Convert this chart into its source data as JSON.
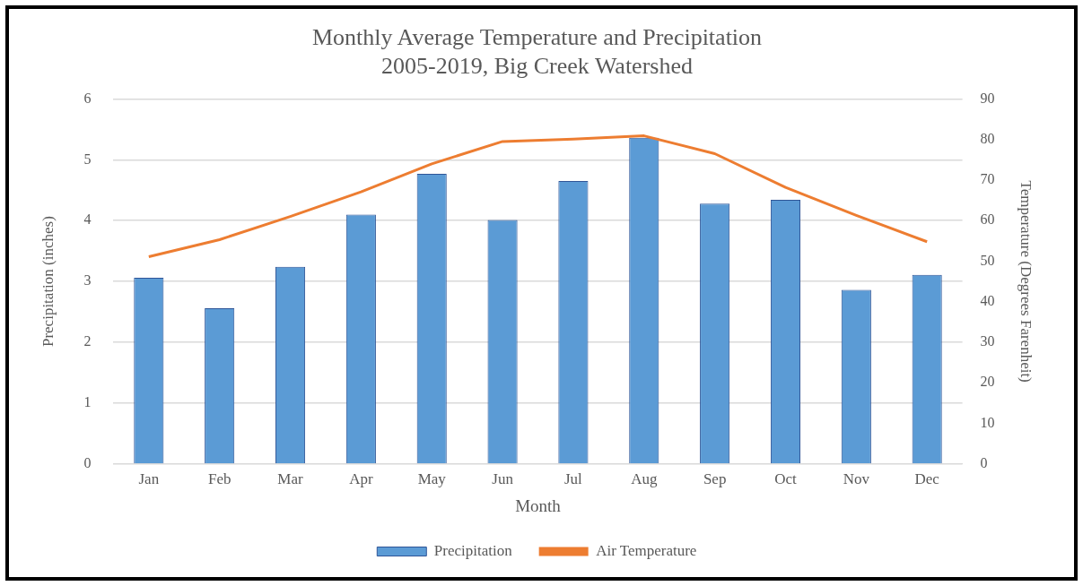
{
  "chart_data": {
    "type": "bar",
    "title": [
      "Monthly Average Temperature and Precipitation",
      "2005-2019, Big Creek Watershed"
    ],
    "xlabel": "Month",
    "ylabel": "Precipitation (inches)",
    "y2label": "Temperature (Degrees Farenheit)",
    "categories": [
      "Jan",
      "Feb",
      "Mar",
      "Apr",
      "May",
      "Jun",
      "Jul",
      "Aug",
      "Sep",
      "Oct",
      "Nov",
      "Dec"
    ],
    "series": [
      {
        "name": "Precipitation",
        "color": "#5b9bd5",
        "values": [
          3.06,
          2.56,
          3.24,
          4.1,
          4.77,
          4.01,
          4.65,
          5.36,
          4.28,
          4.34,
          2.86,
          3.11
        ]
      },
      {
        "name": "Air Temperature",
        "type": "line",
        "axis": "y2",
        "color": "#ed7d31",
        "values": [
          51.1,
          55.3,
          61,
          67.1,
          74,
          79.5,
          80.1,
          80.9,
          76.5,
          68.2,
          61.3,
          54.8
        ]
      }
    ],
    "ylim": [
      0,
      6
    ],
    "yticks": [
      0,
      1,
      2,
      3,
      4,
      5,
      6
    ],
    "y2lim": [
      0,
      90
    ],
    "y2ticks": [
      0,
      10,
      20,
      30,
      40,
      50,
      60,
      70,
      80,
      90
    ],
    "grid": "y",
    "legend": "bottom",
    "marker": "none"
  }
}
